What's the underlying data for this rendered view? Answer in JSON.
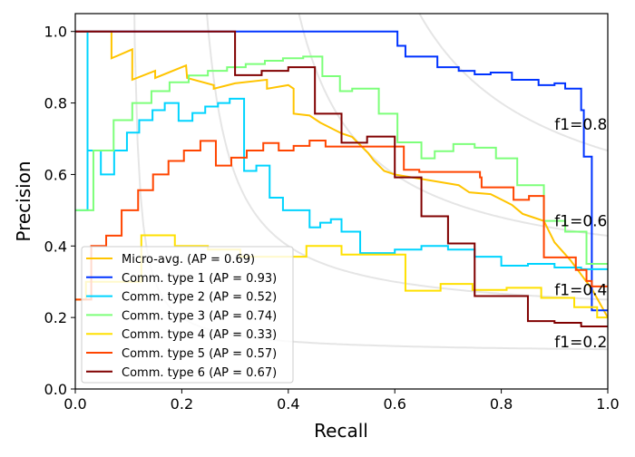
{
  "chart_data": {
    "type": "line",
    "title": "",
    "xlabel": "Recall",
    "ylabel": "Precision",
    "xlim": [
      0,
      1.0
    ],
    "ylim": [
      0,
      1.05
    ],
    "xticks": [
      "0.0",
      "0.2",
      "0.4",
      "0.6",
      "0.8",
      "1.0"
    ],
    "yticks": [
      "0.0",
      "0.2",
      "0.4",
      "0.6",
      "0.8",
      "1.0"
    ],
    "grid": false,
    "legend_position": "lower-left",
    "iso_f1": [
      {
        "f": 0.2,
        "label": "f1=0.2"
      },
      {
        "f": 0.4,
        "label": "f1=0.4"
      },
      {
        "f": 0.6,
        "label": "f1=0.6"
      },
      {
        "f": 0.8,
        "label": "f1=0.8"
      }
    ],
    "series": [
      {
        "name": "Micro-avg. (AP = 0.69)",
        "color": "#ffc400",
        "style": "line",
        "points": [
          [
            0,
            1
          ],
          [
            0.068,
            1
          ],
          [
            0.068,
            0.925
          ],
          [
            0.107,
            0.95
          ],
          [
            0.107,
            0.865
          ],
          [
            0.15,
            0.89
          ],
          [
            0.15,
            0.87
          ],
          [
            0.208,
            0.905
          ],
          [
            0.21,
            0.87
          ],
          [
            0.26,
            0.85
          ],
          [
            0.26,
            0.84
          ],
          [
            0.3,
            0.855
          ],
          [
            0.36,
            0.865
          ],
          [
            0.36,
            0.84
          ],
          [
            0.4,
            0.85
          ],
          [
            0.41,
            0.84
          ],
          [
            0.41,
            0.77
          ],
          [
            0.44,
            0.765
          ],
          [
            0.46,
            0.745
          ],
          [
            0.5,
            0.715
          ],
          [
            0.52,
            0.705
          ],
          [
            0.55,
            0.66
          ],
          [
            0.56,
            0.64
          ],
          [
            0.58,
            0.61
          ],
          [
            0.6,
            0.6
          ],
          [
            0.64,
            0.59
          ],
          [
            0.7,
            0.575
          ],
          [
            0.72,
            0.57
          ],
          [
            0.74,
            0.55
          ],
          [
            0.78,
            0.545
          ],
          [
            0.8,
            0.53
          ],
          [
            0.82,
            0.515
          ],
          [
            0.84,
            0.49
          ],
          [
            0.86,
            0.48
          ],
          [
            0.88,
            0.47
          ],
          [
            0.9,
            0.41
          ],
          [
            0.93,
            0.36
          ],
          [
            0.95,
            0.32
          ],
          [
            0.97,
            0.28
          ],
          [
            1.0,
            0.2
          ]
        ]
      },
      {
        "name": "Comm. type 1 (AP = 0.93)",
        "color": "#0033ff",
        "style": "step",
        "points": [
          [
            0,
            1
          ],
          [
            0.605,
            0.96
          ],
          [
            0.62,
            0.93
          ],
          [
            0.68,
            0.9
          ],
          [
            0.72,
            0.89
          ],
          [
            0.75,
            0.88
          ],
          [
            0.78,
            0.885
          ],
          [
            0.82,
            0.865
          ],
          [
            0.87,
            0.85
          ],
          [
            0.9,
            0.855
          ],
          [
            0.92,
            0.84
          ],
          [
            0.95,
            0.78
          ],
          [
            0.955,
            0.65
          ],
          [
            0.97,
            0.22
          ],
          [
            1.0,
            0.22
          ]
        ]
      },
      {
        "name": "Comm. type 2 (AP = 0.52)",
        "color": "#00d4ff",
        "style": "step",
        "points": [
          [
            0,
            0.5
          ],
          [
            0.023,
            1.0
          ],
          [
            0.023,
            0.667
          ],
          [
            0.048,
            0.6
          ],
          [
            0.073,
            0.667
          ],
          [
            0.097,
            0.717
          ],
          [
            0.12,
            0.752
          ],
          [
            0.145,
            0.78
          ],
          [
            0.168,
            0.8
          ],
          [
            0.194,
            0.75
          ],
          [
            0.22,
            0.772
          ],
          [
            0.244,
            0.79
          ],
          [
            0.268,
            0.8
          ],
          [
            0.29,
            0.812
          ],
          [
            0.317,
            0.61
          ],
          [
            0.34,
            0.625
          ],
          [
            0.365,
            0.535
          ],
          [
            0.39,
            0.5
          ],
          [
            0.44,
            0.452
          ],
          [
            0.46,
            0.465
          ],
          [
            0.48,
            0.475
          ],
          [
            0.5,
            0.44
          ],
          [
            0.535,
            0.38
          ],
          [
            0.6,
            0.39
          ],
          [
            0.65,
            0.4
          ],
          [
            0.7,
            0.39
          ],
          [
            0.75,
            0.37
          ],
          [
            0.8,
            0.345
          ],
          [
            0.85,
            0.35
          ],
          [
            0.9,
            0.34
          ],
          [
            0.95,
            0.335
          ],
          [
            1.0,
            0.335
          ]
        ]
      },
      {
        "name": "Comm. type 3 (AP = 0.74)",
        "color": "#7dff7a",
        "style": "step",
        "points": [
          [
            0,
            0.5
          ],
          [
            0.034,
            0.667
          ],
          [
            0.072,
            0.752
          ],
          [
            0.107,
            0.8
          ],
          [
            0.143,
            0.833
          ],
          [
            0.177,
            0.858
          ],
          [
            0.213,
            0.877
          ],
          [
            0.249,
            0.89
          ],
          [
            0.285,
            0.9
          ],
          [
            0.32,
            0.909
          ],
          [
            0.356,
            0.918
          ],
          [
            0.39,
            0.925
          ],
          [
            0.428,
            0.93
          ],
          [
            0.464,
            0.875
          ],
          [
            0.497,
            0.833
          ],
          [
            0.52,
            0.84
          ],
          [
            0.57,
            0.77
          ],
          [
            0.605,
            0.69
          ],
          [
            0.65,
            0.645
          ],
          [
            0.675,
            0.665
          ],
          [
            0.71,
            0.685
          ],
          [
            0.75,
            0.675
          ],
          [
            0.79,
            0.645
          ],
          [
            0.83,
            0.57
          ],
          [
            0.88,
            0.47
          ],
          [
            0.92,
            0.44
          ],
          [
            0.96,
            0.35
          ],
          [
            1.0,
            0.35
          ]
        ]
      },
      {
        "name": "Comm. type 4 (AP = 0.33)",
        "color": "#ffe000",
        "style": "step",
        "points": [
          [
            0,
            0.25
          ],
          [
            0.02,
            0.3
          ],
          [
            0.124,
            0.43
          ],
          [
            0.187,
            0.4
          ],
          [
            0.249,
            0.39
          ],
          [
            0.31,
            0.37
          ],
          [
            0.37,
            0.37
          ],
          [
            0.434,
            0.4
          ],
          [
            0.5,
            0.376
          ],
          [
            0.62,
            0.275
          ],
          [
            0.686,
            0.294
          ],
          [
            0.746,
            0.277
          ],
          [
            0.81,
            0.283
          ],
          [
            0.875,
            0.255
          ],
          [
            0.937,
            0.229
          ],
          [
            0.98,
            0.2
          ],
          [
            1.0,
            0.2
          ]
        ]
      },
      {
        "name": "Comm. type 5 (AP = 0.57)",
        "color": "#ff4500",
        "style": "step",
        "points": [
          [
            0,
            0.25
          ],
          [
            0.03,
            0.4
          ],
          [
            0.058,
            0.429
          ],
          [
            0.087,
            0.5
          ],
          [
            0.118,
            0.556
          ],
          [
            0.146,
            0.6
          ],
          [
            0.175,
            0.638
          ],
          [
            0.204,
            0.667
          ],
          [
            0.235,
            0.694
          ],
          [
            0.264,
            0.625
          ],
          [
            0.293,
            0.647
          ],
          [
            0.322,
            0.667
          ],
          [
            0.353,
            0.688
          ],
          [
            0.382,
            0.667
          ],
          [
            0.41,
            0.68
          ],
          [
            0.44,
            0.695
          ],
          [
            0.47,
            0.678
          ],
          [
            0.617,
            0.613
          ],
          [
            0.646,
            0.607
          ],
          [
            0.76,
            0.592
          ],
          [
            0.763,
            0.564
          ],
          [
            0.823,
            0.529
          ],
          [
            0.852,
            0.54
          ],
          [
            0.88,
            0.368
          ],
          [
            0.94,
            0.333
          ],
          [
            0.96,
            0.302
          ],
          [
            0.97,
            0.287
          ],
          [
            1.0,
            0.287
          ]
        ]
      },
      {
        "name": "Comm. type 6 (AP = 0.67)",
        "color": "#800000",
        "style": "step",
        "points": [
          [
            0,
            1.0
          ],
          [
            0.3,
            0.878
          ],
          [
            0.35,
            0.89
          ],
          [
            0.4,
            0.9
          ],
          [
            0.45,
            0.77
          ],
          [
            0.5,
            0.689
          ],
          [
            0.548,
            0.706
          ],
          [
            0.6,
            0.592
          ],
          [
            0.65,
            0.483
          ],
          [
            0.7,
            0.407
          ],
          [
            0.75,
            0.26
          ],
          [
            0.85,
            0.19
          ],
          [
            0.9,
            0.185
          ],
          [
            0.95,
            0.175
          ],
          [
            1.0,
            0.175
          ]
        ]
      }
    ]
  }
}
